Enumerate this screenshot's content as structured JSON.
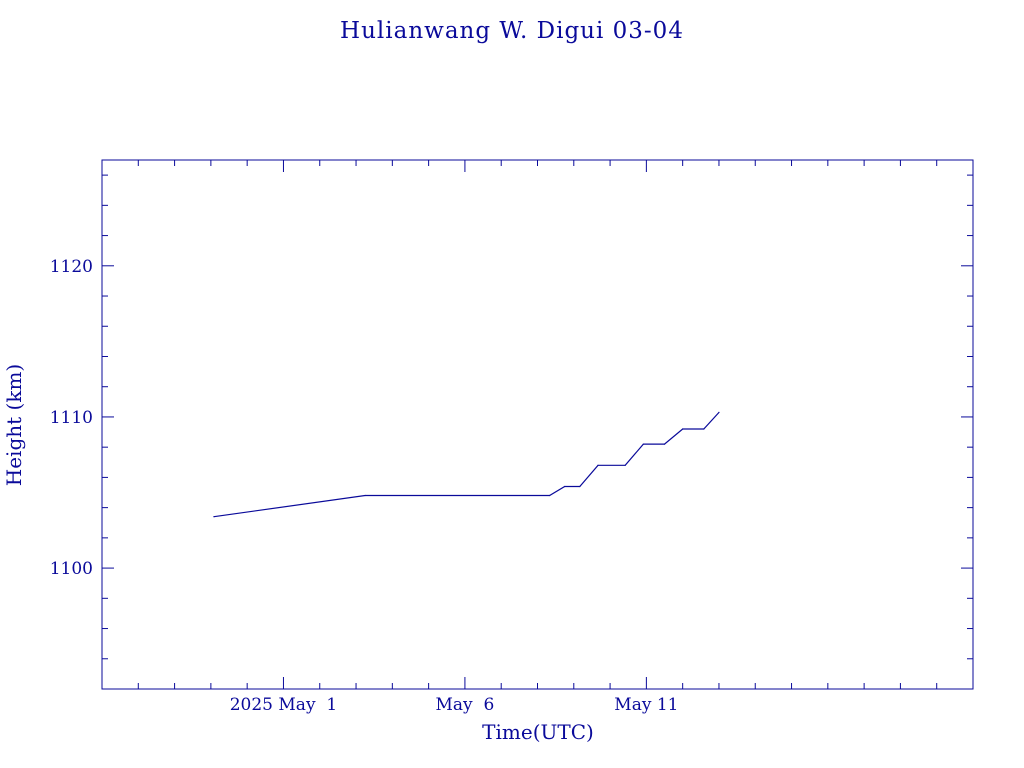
{
  "colors": {
    "ink": "#0a0a9a",
    "background": "#ffffff"
  },
  "chart_data": {
    "type": "line",
    "title": "Hulianwang W. Digui 03-04",
    "xlabel": "Time(UTC)",
    "ylabel": "Height (km)",
    "xlim": [
      "2025-04-26",
      "2025-05-20"
    ],
    "ylim": [
      1092,
      1127
    ],
    "grid": false,
    "x_ticks": [
      {
        "date": "2025-05-01",
        "label": "2025 May  1"
      },
      {
        "date": "2025-05-06",
        "label": "May  6"
      },
      {
        "date": "2025-05-11",
        "label": "May 11"
      }
    ],
    "y_ticks": [
      1100,
      1110,
      1120
    ],
    "series": [
      {
        "points": [
          {
            "x": "2025-04-29T02:00",
            "y": 1103.4
          },
          {
            "x": "2025-05-03T06:00",
            "y": 1104.8
          },
          {
            "x": "2025-05-08T08:00",
            "y": 1104.8
          },
          {
            "x": "2025-05-08T18:00",
            "y": 1105.4
          },
          {
            "x": "2025-05-09T04:00",
            "y": 1105.4
          },
          {
            "x": "2025-05-09T16:00",
            "y": 1106.8
          },
          {
            "x": "2025-05-10T10:00",
            "y": 1106.8
          },
          {
            "x": "2025-05-10T22:00",
            "y": 1108.2
          },
          {
            "x": "2025-05-11T12:00",
            "y": 1108.2
          },
          {
            "x": "2025-05-12T00:00",
            "y": 1109.2
          },
          {
            "x": "2025-05-12T14:00",
            "y": 1109.2
          },
          {
            "x": "2025-05-13T00:00",
            "y": 1110.3
          }
        ]
      }
    ]
  }
}
